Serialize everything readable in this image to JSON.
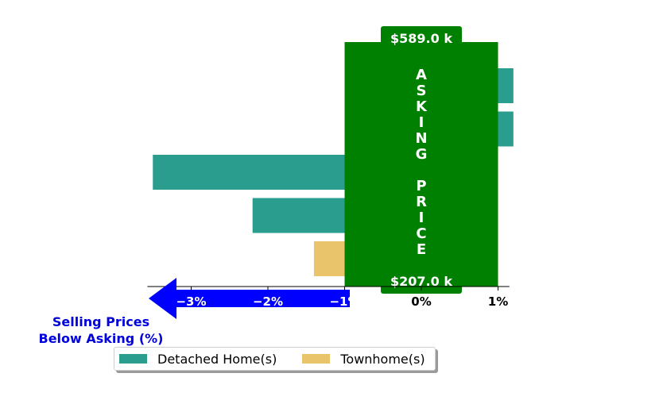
{
  "chart_data": {
    "type": "bar",
    "orientation": "horizontal",
    "xlim": [
      -4.4,
      1.2
    ],
    "x_ticks": [
      -3,
      -2,
      -1,
      0,
      1
    ],
    "x_tick_labels": [
      "−3%",
      "−2%",
      "−1%",
      "0%",
      "1%"
    ],
    "bars": [
      {
        "series": "Detached Home(s)",
        "value": 1.2
      },
      {
        "series": "Detached Home(s)",
        "value": 1.2
      },
      {
        "series": "Detached Home(s)",
        "value": -3.5
      },
      {
        "series": "Detached Home(s)",
        "value": -2.2
      },
      {
        "series": "Townhome(s)",
        "value": -1.4
      }
    ],
    "asking_price_box": {
      "x_range": [
        -1,
        1
      ],
      "top_label": "$589.0 k",
      "bottom_label": "$207.0 k",
      "vertical_text": "ASKING PRICE"
    },
    "below_asking_label": "Selling Prices\nBelow Asking (%)",
    "legend": [
      {
        "name": "Detached Home(s)",
        "color": "#2a9d8f"
      },
      {
        "name": "Townhome(s)",
        "color": "#e9c46a"
      }
    ],
    "legend_position": "bottom",
    "colors": {
      "detached": "#2a9d8f",
      "townhome": "#e9c46a",
      "asking_box": "#008000",
      "arrow": "#0000ff",
      "below_label": "#0000dd"
    }
  }
}
